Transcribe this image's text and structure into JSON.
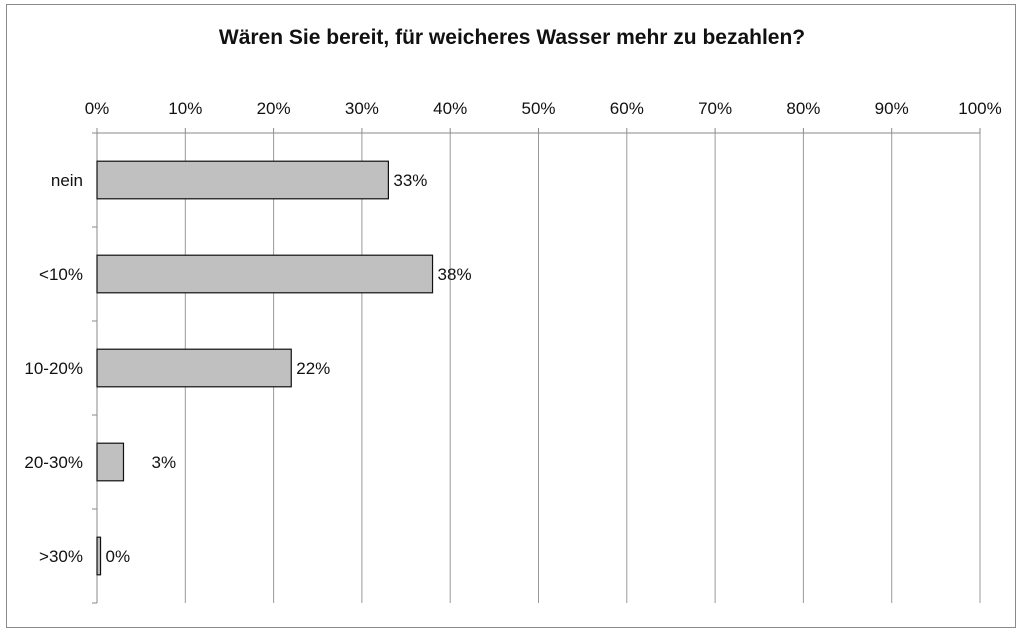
{
  "chart_data": {
    "type": "bar",
    "orientation": "horizontal",
    "title": "Wären Sie bereit, für weicheres Wasser mehr zu bezahlen?",
    "xlabel": "",
    "ylabel": "",
    "categories": [
      "nein",
      "<10%",
      "10-20%",
      "20-30%",
      ">30%"
    ],
    "values": [
      33,
      38,
      22,
      3,
      0.4
    ],
    "data_labels": [
      "33%",
      "38%",
      "22%",
      "3%",
      "0%"
    ],
    "xlim": [
      0,
      100
    ],
    "x_ticks": [
      "0%",
      "10%",
      "20%",
      "30%",
      "40%",
      "50%",
      "60%",
      "70%",
      "80%",
      "90%",
      "100%"
    ],
    "x_axis_position": "top",
    "grid": true,
    "legend": "none",
    "colors": {
      "bar_fill": "#c0c0c0",
      "bar_stroke": "#111111",
      "grid": "#9a9a9a",
      "axis": "#8a8a8a",
      "text": "#111111"
    }
  }
}
